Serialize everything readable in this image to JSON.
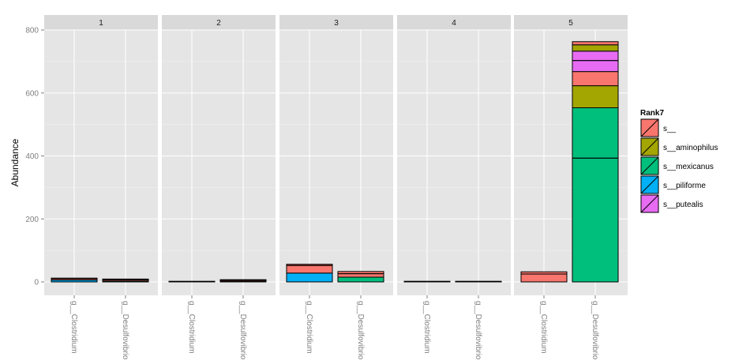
{
  "chart_data": {
    "type": "bar",
    "stacked": true,
    "facet_labels": [
      "1",
      "2",
      "3",
      "4",
      "5"
    ],
    "categories": [
      "g__Clostridium",
      "g__Desulfovibrio"
    ],
    "ylabel": "Abundance",
    "xlabel": "",
    "ylim": [
      -25,
      825
    ],
    "yticks": [
      0,
      200,
      400,
      600,
      800
    ],
    "grid": true,
    "legend": {
      "title": "Rank7",
      "placement": "right",
      "entries": [
        {
          "name": "s__",
          "color": "#F8766D"
        },
        {
          "name": "s__aminophilus",
          "color": "#A3A500"
        },
        {
          "name": "s__mexicanus",
          "color": "#00BF7D"
        },
        {
          "name": "s__piliforme",
          "color": "#00B0F6"
        },
        {
          "name": "s__putealis",
          "color": "#E76BF3"
        }
      ]
    },
    "panels": [
      {
        "facet": "1",
        "bars": [
          {
            "category": "g__Clostridium",
            "segments": [
              {
                "species": "s__piliforme",
                "values": [
                  6
                ]
              },
              {
                "species": "s__",
                "values": [
                  4,
                  2
                ]
              }
            ]
          },
          {
            "category": "g__Desulfovibrio",
            "segments": [
              {
                "species": "s__mexicanus",
                "values": [
                  3
                ]
              },
              {
                "species": "s__",
                "values": [
                  4,
                  2
                ]
              }
            ]
          }
        ]
      },
      {
        "facet": "2",
        "bars": [
          {
            "category": "g__Clostridium",
            "segments": [
              {
                "species": "s__",
                "values": [
                  2
                ]
              }
            ]
          },
          {
            "category": "g__Desulfovibrio",
            "segments": [
              {
                "species": "s__mexicanus",
                "values": [
                  2
                ]
              },
              {
                "species": "s__",
                "values": [
                  3,
                  2
                ]
              }
            ]
          }
        ]
      },
      {
        "facet": "3",
        "bars": [
          {
            "category": "g__Clostridium",
            "segments": [
              {
                "species": "s__piliforme",
                "values": [
                  28
                ]
              },
              {
                "species": "s__",
                "values": [
                  24,
                  4
                ]
              }
            ]
          },
          {
            "category": "g__Desulfovibrio",
            "segments": [
              {
                "species": "s__mexicanus",
                "values": [
                  15
                ]
              },
              {
                "species": "s__",
                "values": [
                  11,
                  7
                ]
              }
            ]
          }
        ]
      },
      {
        "facet": "4",
        "bars": [
          {
            "category": "g__Clostridium",
            "segments": [
              {
                "species": "s__",
                "values": [
                  2
                ]
              }
            ]
          },
          {
            "category": "g__Desulfovibrio",
            "segments": [
              {
                "species": "s__",
                "values": [
                  2
                ]
              }
            ]
          }
        ]
      },
      {
        "facet": "5",
        "bars": [
          {
            "category": "g__Clostridium",
            "segments": [
              {
                "species": "s__",
                "values": [
                  25,
                  7
                ]
              }
            ]
          },
          {
            "category": "g__Desulfovibrio",
            "segments": [
              {
                "species": "s__mexicanus",
                "values": [
                  393,
                  160
                ]
              },
              {
                "species": "s__aminophilus",
                "values": [
                  70
                ]
              },
              {
                "species": "s__",
                "values": [
                  45
                ]
              },
              {
                "species": "s__putealis",
                "values": [
                  35,
                  30
                ]
              },
              {
                "species": "s__aminophilus",
                "values": [
                  20
                ]
              },
              {
                "species": "s__",
                "values": [
                  10
                ]
              }
            ]
          }
        ]
      }
    ]
  }
}
